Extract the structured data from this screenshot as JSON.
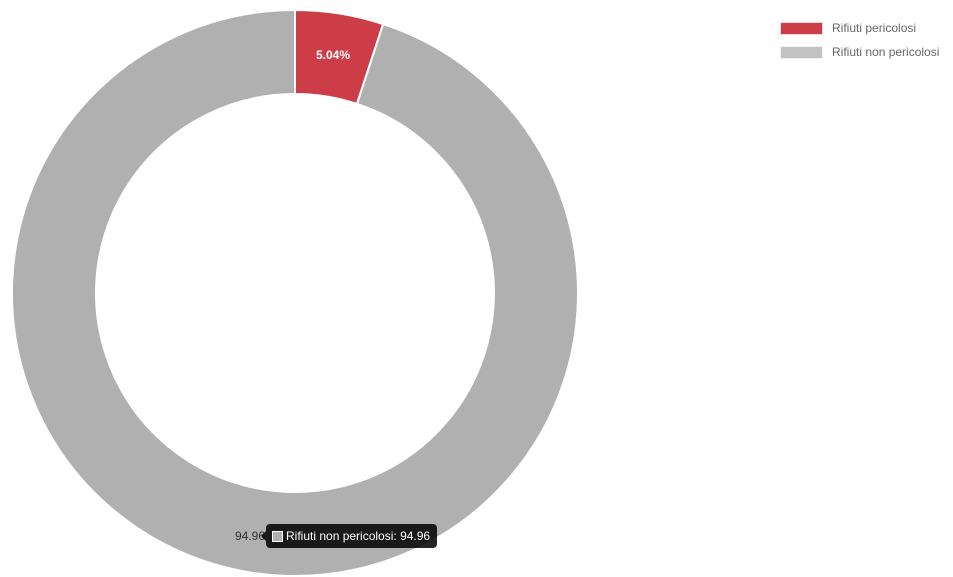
{
  "chart_data": {
    "type": "pie",
    "variant": "doughnut",
    "categories": [
      "Rifiuti pericolosi",
      "Rifiuti non pericolosi"
    ],
    "values": [
      5.04,
      94.96
    ],
    "value_labels": [
      "5.04%",
      "94.96"
    ],
    "colors": [
      "#cc3d48",
      "#b0b0b0"
    ],
    "legend": {
      "placement": "top-right",
      "items": [
        {
          "label": "Rifiuti pericolosi",
          "color": "#cc3d48"
        },
        {
          "label": "Rifiuti non pericolosi",
          "color": "#c2c2c2"
        }
      ]
    }
  },
  "tooltip": {
    "label": "Rifiuti non pericolosi",
    "separator": ": ",
    "value": "94.96",
    "swatch_color": "#b0b0b0"
  }
}
